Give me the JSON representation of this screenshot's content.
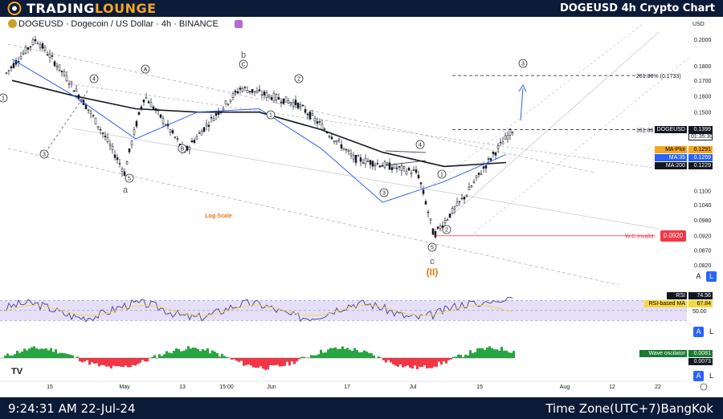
{
  "header": {
    "brand_left": "TRADING",
    "brand_right": "LOUNGE",
    "title": "DOGEUSD 4h Crypto Chart"
  },
  "symbol": {
    "text": "DOGEUSD · Dogecoin / US Dollar · 4h · BINANCE",
    "icon": "dogecoin-icon"
  },
  "footer": {
    "time": "9:24:31 AM 22-Jul-24",
    "timezone": "Time Zone(UTC+7)BangKok"
  },
  "axis": {
    "currency": "USD",
    "price_ticks": [
      "0.2000",
      "0.1800",
      "0.1700",
      "0.1600",
      "0.1500",
      "0.1100",
      "0.1040",
      "0.0980",
      "0.0920",
      "0.0870",
      "0.0820"
    ],
    "time_ticks": [
      "15",
      "May",
      "13",
      "15:00",
      "Jun",
      "17",
      "Jul",
      "15",
      "Aug",
      "12",
      "22"
    ],
    "rsi_ticks": [
      "50.00"
    ]
  },
  "price_tags": {
    "last": {
      "label": "DOGEUSD",
      "value": "0.1399",
      "countdown": "01:35:30",
      "color": "#131722"
    },
    "ma_plot": {
      "label": "MA-Plot",
      "value": "0.1291",
      "color": "#f5a623"
    },
    "ma35": {
      "label": "MA:35",
      "value": "0.1269",
      "color": "#2962ff"
    },
    "ma200": {
      "label": "MA:200",
      "value": "0.1229",
      "color": "#131722"
    },
    "invalid": {
      "value": "0.0920",
      "color": "#f23645"
    },
    "rsi": {
      "label": "RSI",
      "value": "74.56"
    },
    "rsi_ma": {
      "label": "RSI-based MA",
      "value": "67.84"
    },
    "wave": {
      "label": "Wave oscilator",
      "value1": "0.0081",
      "value2": "0.0073"
    }
  },
  "annotations": {
    "fib_2618": "261.80% (0.1733)",
    "fib_1618": "161.80",
    "invalid_label": "W.C.Invalid",
    "scale_note": "Log-Scale",
    "wave_a": "a",
    "wave_b": "b",
    "wave_c": "c",
    "wave_II": "(II)",
    "circled": [
      "1",
      "2",
      "3",
      "4",
      "5",
      "A",
      "B",
      "C"
    ]
  },
  "buttons": {
    "auto": "A",
    "log": "L"
  },
  "chart_data": {
    "type": "line",
    "title": "DOGEUSD · Dogecoin / US Dollar · 4h · BINANCE",
    "x": [
      "15",
      "May",
      "13",
      "15:00",
      "Jun",
      "17",
      "Jul",
      "15",
      "22"
    ],
    "series": [
      {
        "name": "DOGEUSD",
        "values": [
          0.2,
          0.15,
          0.12,
          0.155,
          0.15,
          0.125,
          0.092,
          0.118,
          0.1399
        ]
      },
      {
        "name": "MA:200",
        "values": [
          0.17,
          0.16,
          0.152,
          0.15,
          0.15,
          0.14,
          0.128,
          0.121,
          0.1229
        ]
      },
      {
        "name": "MA:35",
        "values": [
          0.185,
          0.16,
          0.135,
          0.15,
          0.152,
          0.13,
          0.105,
          0.114,
          0.1269
        ]
      }
    ],
    "y_scale": "log",
    "ylim": [
      0.08,
      0.205
    ],
    "levels": [
      {
        "label": "261.80% (0.1733)",
        "value": 0.1733
      },
      {
        "label": "161.80",
        "value": 0.1399
      },
      {
        "label": "W.C.Invalid",
        "value": 0.092
      }
    ],
    "rsi": {
      "last": 74.56,
      "ma": 67.84,
      "band": [
        30,
        70
      ],
      "mid": 50
    },
    "oscillator": {
      "last": 0.0081,
      "signal": 0.0073
    }
  }
}
